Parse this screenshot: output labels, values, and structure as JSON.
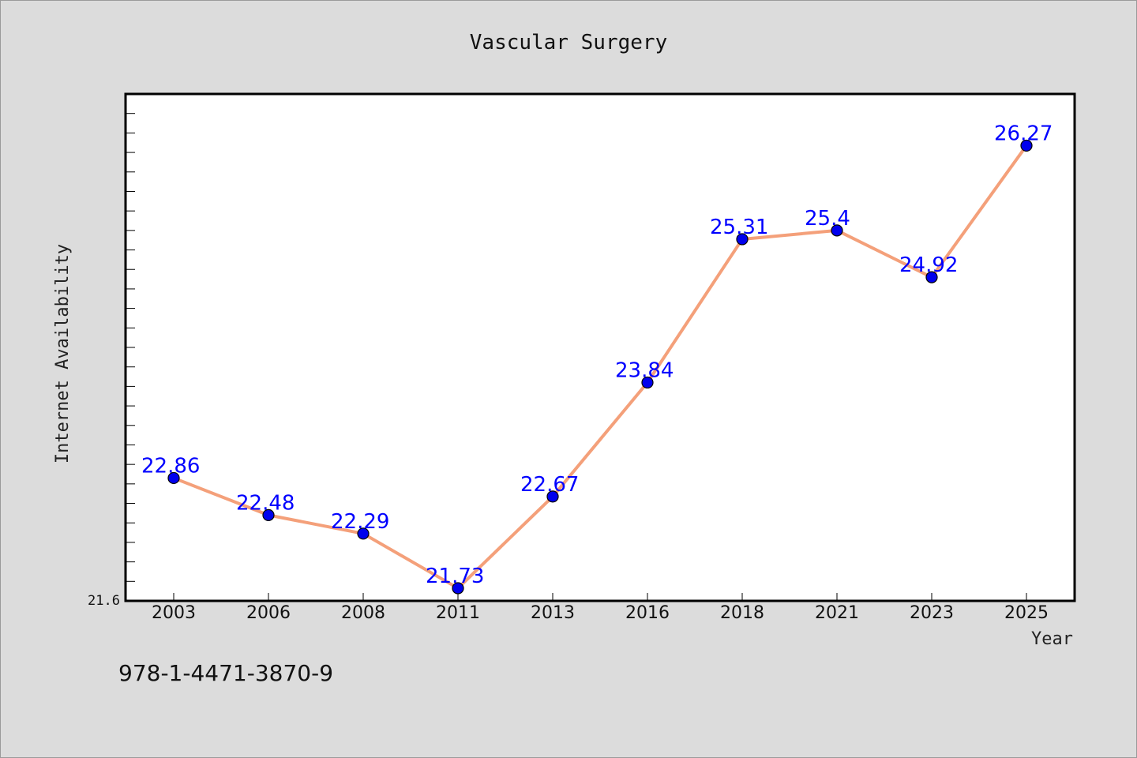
{
  "chart_data": {
    "type": "line",
    "title": "Vascular Surgery",
    "xlabel": "Year",
    "ylabel": "Internet Availability",
    "categories": [
      "2003",
      "2006",
      "2008",
      "2011",
      "2013",
      "2016",
      "2018",
      "2021",
      "2023",
      "2025"
    ],
    "series": [
      {
        "values": [
          22.86,
          22.48,
          22.29,
          21.73,
          22.67,
          23.84,
          25.31,
          25.4,
          24.92,
          26.27
        ],
        "labels": [
          "22.86",
          "22.48",
          "22.29",
          "21.73",
          "22.67",
          "23.84",
          "25.31",
          "25.4",
          "24.92",
          "26.27"
        ]
      }
    ],
    "ylim": [
      21.6,
      26.8
    ],
    "y_tick_label": "21.6",
    "grid": false,
    "legend": "none",
    "colors": {
      "line": "#f4a07a",
      "marker": "#0000ee",
      "data_label": "#0000ff",
      "background": "#dcdcdc",
      "plot_background": "#ffffff"
    }
  },
  "footer": {
    "isbn": "978-1-4471-3870-9"
  }
}
